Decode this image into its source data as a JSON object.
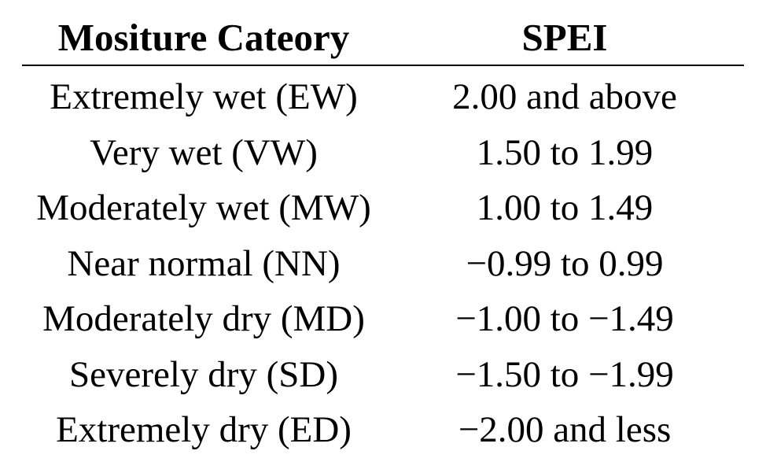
{
  "table": {
    "headers": [
      "Mositure Cateory",
      "SPEI"
    ],
    "rows": [
      [
        "Extremely wet (EW)",
        "2.00 and above"
      ],
      [
        "Very wet (VW)",
        "1.50 to 1.99"
      ],
      [
        "Moderately wet (MW)",
        "1.00 to 1.49"
      ],
      [
        "Near normal (NN)",
        "−0.99 to 0.99"
      ],
      [
        "Moderately dry (MD)",
        "−1.00 to −1.49"
      ],
      [
        "Severely dry (SD)",
        "−1.50 to −1.99"
      ],
      [
        "Extremely dry (ED)",
        "−2.00 and less"
      ]
    ]
  }
}
